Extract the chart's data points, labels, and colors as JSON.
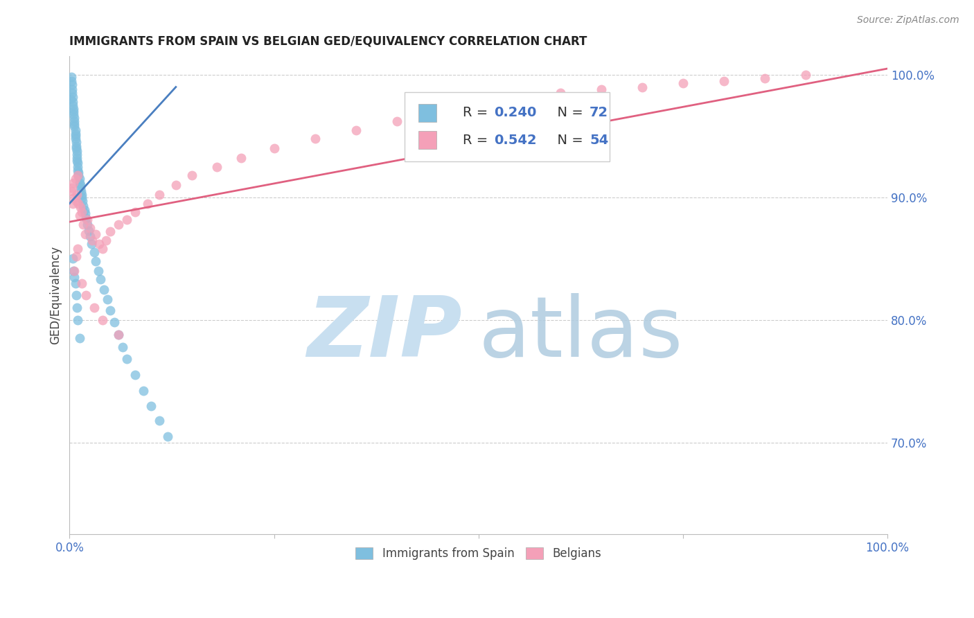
{
  "title": "IMMIGRANTS FROM SPAIN VS BELGIAN GED/EQUIVALENCY CORRELATION CHART",
  "source": "Source: ZipAtlas.com",
  "ylabel": "GED/Equivalency",
  "legend_blue_r": "R = 0.240",
  "legend_blue_n": "N = 72",
  "legend_pink_r": "R = 0.542",
  "legend_pink_n": "N = 54",
  "blue_color": "#7fbfdf",
  "pink_color": "#f4a0b8",
  "blue_line_color": "#4a7fc0",
  "pink_line_color": "#e06080",
  "watermark_zip_color": "#c8dff0",
  "watermark_atlas_color": "#b0cce0",
  "xlim": [
    0.0,
    1.0
  ],
  "ylim": [
    0.625,
    1.015
  ],
  "yticks": [
    0.7,
    0.8,
    0.9,
    1.0
  ],
  "ytick_labels": [
    "70.0%",
    "80.0%",
    "90.0%",
    "100.0%"
  ],
  "blue_x": [
    0.001,
    0.002,
    0.002,
    0.003,
    0.003,
    0.003,
    0.004,
    0.004,
    0.004,
    0.005,
    0.005,
    0.005,
    0.006,
    0.006,
    0.006,
    0.006,
    0.007,
    0.007,
    0.007,
    0.007,
    0.008,
    0.008,
    0.008,
    0.009,
    0.009,
    0.009,
    0.009,
    0.01,
    0.01,
    0.01,
    0.011,
    0.011,
    0.012,
    0.012,
    0.013,
    0.013,
    0.014,
    0.015,
    0.015,
    0.016,
    0.017,
    0.018,
    0.019,
    0.02,
    0.022,
    0.023,
    0.025,
    0.027,
    0.03,
    0.032,
    0.035,
    0.038,
    0.042,
    0.046,
    0.05,
    0.055,
    0.06,
    0.065,
    0.07,
    0.08,
    0.09,
    0.1,
    0.11,
    0.12,
    0.004,
    0.005,
    0.006,
    0.007,
    0.008,
    0.009,
    0.01,
    0.012
  ],
  "blue_y": [
    0.98,
    0.998,
    0.995,
    0.992,
    0.988,
    0.985,
    0.982,
    0.978,
    0.975,
    0.972,
    0.97,
    0.968,
    0.965,
    0.962,
    0.96,
    0.958,
    0.955,
    0.952,
    0.95,
    0.948,
    0.945,
    0.942,
    0.94,
    0.938,
    0.935,
    0.932,
    0.93,
    0.928,
    0.925,
    0.922,
    0.92,
    0.918,
    0.915,
    0.912,
    0.91,
    0.908,
    0.905,
    0.902,
    0.9,
    0.897,
    0.893,
    0.89,
    0.887,
    0.883,
    0.878,
    0.873,
    0.868,
    0.862,
    0.855,
    0.848,
    0.84,
    0.833,
    0.825,
    0.817,
    0.808,
    0.798,
    0.788,
    0.778,
    0.768,
    0.755,
    0.742,
    0.73,
    0.718,
    0.705,
    0.85,
    0.84,
    0.835,
    0.83,
    0.82,
    0.81,
    0.8,
    0.785
  ],
  "pink_x": [
    0.002,
    0.003,
    0.004,
    0.005,
    0.006,
    0.007,
    0.008,
    0.009,
    0.01,
    0.011,
    0.012,
    0.013,
    0.015,
    0.017,
    0.019,
    0.022,
    0.025,
    0.028,
    0.032,
    0.036,
    0.04,
    0.045,
    0.05,
    0.06,
    0.07,
    0.08,
    0.095,
    0.11,
    0.13,
    0.15,
    0.18,
    0.21,
    0.25,
    0.3,
    0.35,
    0.4,
    0.45,
    0.5,
    0.55,
    0.6,
    0.65,
    0.7,
    0.75,
    0.8,
    0.85,
    0.9,
    0.006,
    0.008,
    0.01,
    0.015,
    0.02,
    0.03,
    0.04,
    0.06
  ],
  "pink_y": [
    0.905,
    0.908,
    0.895,
    0.912,
    0.9,
    0.915,
    0.897,
    0.902,
    0.918,
    0.895,
    0.885,
    0.892,
    0.888,
    0.878,
    0.87,
    0.882,
    0.875,
    0.865,
    0.87,
    0.862,
    0.858,
    0.865,
    0.872,
    0.878,
    0.882,
    0.888,
    0.895,
    0.902,
    0.91,
    0.918,
    0.925,
    0.932,
    0.94,
    0.948,
    0.955,
    0.962,
    0.968,
    0.975,
    0.98,
    0.985,
    0.988,
    0.99,
    0.993,
    0.995,
    0.997,
    1.0,
    0.84,
    0.852,
    0.858,
    0.83,
    0.82,
    0.81,
    0.8,
    0.788
  ],
  "blue_line_x": [
    0.0,
    0.13
  ],
  "blue_line_y": [
    0.895,
    0.99
  ],
  "pink_line_x": [
    0.0,
    1.0
  ],
  "pink_line_y": [
    0.88,
    1.005
  ]
}
